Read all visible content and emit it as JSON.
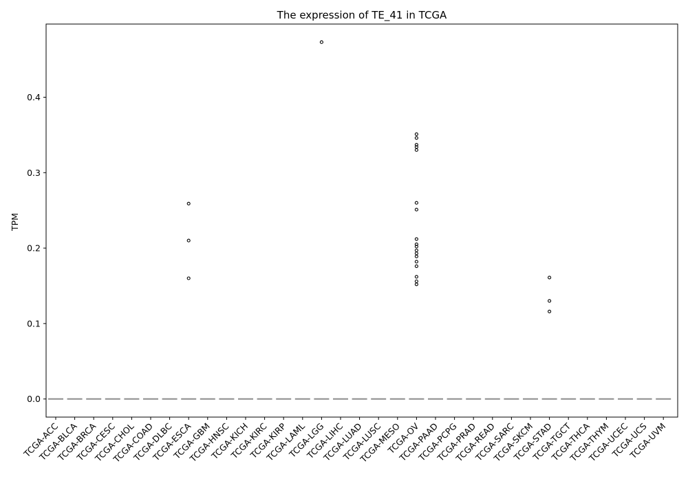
{
  "chart_data": {
    "type": "box",
    "title": "The expression of TE_41 in TCGA",
    "xlabel": "",
    "ylabel": "TPM",
    "ylim": [
      -0.024,
      0.497
    ],
    "yticks": [
      0.0,
      0.1,
      0.2,
      0.3,
      0.4
    ],
    "ytick_labels": [
      "0.0",
      "0.1",
      "0.2",
      "0.3",
      "0.4"
    ],
    "grid": false,
    "categories": [
      "TCGA-ACC",
      "TCGA-BLCA",
      "TCGA-BRCA",
      "TCGA-CESC",
      "TCGA-CHOL",
      "TCGA-COAD",
      "TCGA-DLBC",
      "TCGA-ESCA",
      "TCGA-GBM",
      "TCGA-HNSC",
      "TCGA-KICH",
      "TCGA-KIRC",
      "TCGA-KIRP",
      "TCGA-LAML",
      "TCGA-LGG",
      "TCGA-LIHC",
      "TCGA-LUAD",
      "TCGA-LUSC",
      "TCGA-MESO",
      "TCGA-OV",
      "TCGA-PAAD",
      "TCGA-PCPG",
      "TCGA-PRAD",
      "TCGA-READ",
      "TCGA-SARC",
      "TCGA-SKCM",
      "TCGA-STAD",
      "TCGA-TGCT",
      "TCGA-THCA",
      "TCGA-THYM",
      "TCGA-UCEC",
      "TCGA-UCS",
      "TCGA-UVM"
    ],
    "box": {
      "q1": 0.0,
      "median": 0.0,
      "q3": 0.0,
      "whisker_low": 0.0,
      "whisker_high": 0.0
    },
    "outliers": {
      "TCGA-ESCA": [
        0.259,
        0.21,
        0.16
      ],
      "TCGA-LGG": [
        0.473
      ],
      "TCGA-OV": [
        0.351,
        0.346,
        0.337,
        0.334,
        0.33,
        0.26,
        0.251,
        0.212,
        0.205,
        0.202,
        0.197,
        0.193,
        0.189,
        0.182,
        0.176,
        0.162,
        0.156,
        0.152
      ],
      "TCGA-STAD": [
        0.161,
        0.13,
        0.116
      ]
    },
    "colors": {
      "box": "#8a8a8a",
      "marker": "#000000",
      "axis": "#000000"
    }
  }
}
